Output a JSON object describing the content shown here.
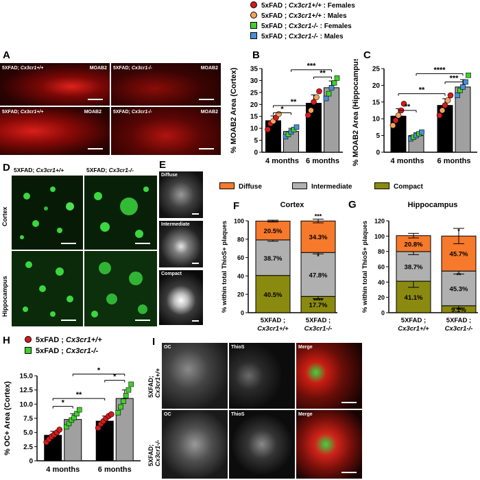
{
  "top_legend": {
    "items": [
      {
        "prefix": "5xFAD ;",
        "genotype": "Cx3cr1+/+",
        "suffix": ": Females",
        "color": "#d7191c",
        "shape": "circle"
      },
      {
        "prefix": "5xFAD ;",
        "genotype": "Cx3cr1+/+",
        "suffix": ": Males",
        "color": "#f4a35c",
        "shape": "circle"
      },
      {
        "prefix": "5xFAD ;",
        "genotype": "Cx3cr1-/-",
        "suffix": ": Females",
        "color": "#3fd12a",
        "shape": "square"
      },
      {
        "prefix": "5xFAD ;",
        "genotype": "Cx3cr1-/-",
        "suffix": ": Males",
        "color": "#4a8fd8",
        "shape": "square"
      }
    ]
  },
  "panel_letters": {
    "A": "A",
    "B": "B",
    "C": "C",
    "D": "D",
    "E": "E",
    "F": "F",
    "G": "G",
    "H": "H",
    "I": "I"
  },
  "panel_a": {
    "images": [
      {
        "genotype_prefix": "5XFAD;",
        "genotype": "Cx3cr1+/+",
        "stain": "MOAB2"
      },
      {
        "genotype_prefix": "5XFAD;",
        "genotype": "Cx3cr1-/-",
        "stain": "MOAB2"
      },
      {
        "genotype_prefix": "5XFAD;",
        "genotype": "Cx3cr1+/+",
        "stain": "MOAB2"
      },
      {
        "genotype_prefix": "5XFAD;",
        "genotype": "Cx3cr1-/-",
        "stain": "MOAB2"
      }
    ]
  },
  "panel_d": {
    "col_headers": [
      {
        "prefix": "5XFAD;",
        "genotype": "Cx3cr1+/+"
      },
      {
        "prefix": "5XFAD;",
        "genotype": "Cx3cr1-/-"
      }
    ],
    "row_labels": [
      "Cortex",
      "Hippocampus"
    ]
  },
  "panel_e": {
    "labels": [
      "Diffuse",
      "Intermediate",
      "Compact"
    ]
  },
  "panel_i": {
    "row_labels": [
      {
        "prefix": "5XFAD;",
        "genotype": "Cx3cr1+/+"
      },
      {
        "prefix": "5XFAD;",
        "genotype": "Cx3cr1-/-"
      }
    ],
    "col_labels": [
      "OC",
      "ThioS",
      "Merge"
    ]
  },
  "fg_legend": {
    "items": [
      {
        "label": "Diffuse",
        "color": "#f7792b"
      },
      {
        "label": "Intermediate",
        "color": "#b0b0b0"
      },
      {
        "label": "Compact",
        "color": "#8a8a10"
      }
    ]
  },
  "h_legend": {
    "items": [
      {
        "prefix": "5xFAD ;",
        "genotype": "Cx3cr1+/+",
        "color": "#d7191c",
        "shape": "circle"
      },
      {
        "prefix": "5xFAD ;",
        "genotype": "Cx3cr1-/-",
        "color": "#3fd12a",
        "shape": "square"
      }
    ]
  },
  "chart_data": [
    {
      "id": "B",
      "type": "bar",
      "title": "",
      "ylabel": "% MOAB2 Area (Cortex)",
      "ylim": [
        0,
        35
      ],
      "yticks": [
        0,
        5,
        10,
        15,
        20,
        25,
        30,
        35
      ],
      "categories": [
        "4 months",
        "6 months"
      ],
      "series": [
        {
          "values": [
            13.2,
            20.5
          ],
          "errors": [
            2.0,
            3.5
          ],
          "color": "#000000"
        },
        {
          "values": [
            8.7,
            27.0
          ],
          "errors": [
            1.3,
            2.8
          ],
          "color": "#a0a0a0"
        }
      ],
      "points": [
        {
          "series": 0,
          "cat": 0,
          "values": [
            9.5,
            12,
            13,
            14.5,
            16
          ],
          "colors": [
            "#d7191c",
            "#d7191c",
            "#f4a35c",
            "#d7191c",
            "#f4a35c"
          ]
        },
        {
          "series": 1,
          "cat": 0,
          "values": [
            6.5,
            7.5,
            8.5,
            9.5,
            10.5
          ],
          "colors": [
            "#4a8fd8",
            "#3fd12a",
            "#4a8fd8",
            "#3fd12a",
            "#4a8fd8"
          ]
        },
        {
          "series": 0,
          "cat": 1,
          "values": [
            15.5,
            17.5,
            21,
            23,
            25.5
          ],
          "colors": [
            "#d7191c",
            "#f4a35c",
            "#d7191c",
            "#f4a35c",
            "#d7191c"
          ]
        },
        {
          "series": 1,
          "cat": 1,
          "values": [
            22.5,
            24.5,
            27,
            29,
            31
          ],
          "colors": [
            "#4a8fd8",
            "#3fd12a",
            "#4a8fd8",
            "#3fd12a",
            "#3fd12a"
          ]
        }
      ],
      "significance": [
        {
          "from": [
            0,
            0
          ],
          "to": [
            0,
            1
          ],
          "level": 16.5,
          "label": "*"
        },
        {
          "from": [
            0,
            0
          ],
          "to": [
            1,
            0
          ],
          "level": 19.5,
          "label": "**"
        },
        {
          "from": [
            1,
            0
          ],
          "to": [
            1,
            1
          ],
          "level": 31.5,
          "label": "**"
        },
        {
          "from": [
            0,
            1
          ],
          "to": [
            1,
            1
          ],
          "level": 34.5,
          "label": "***"
        }
      ]
    },
    {
      "id": "C",
      "type": "bar",
      "title": "",
      "ylabel": "% MOAB2 Area (Hippocampus)",
      "ylim": [
        0,
        25
      ],
      "yticks": [
        0,
        5,
        10,
        15,
        20,
        25
      ],
      "categories": [
        "4 months",
        "6 months"
      ],
      "series": [
        {
          "values": [
            10.8,
            14.0
          ],
          "errors": [
            2.2,
            2.0
          ],
          "color": "#000000"
        },
        {
          "values": [
            5.0,
            19.5
          ],
          "errors": [
            0.8,
            2.2
          ],
          "color": "#a0a0a0"
        }
      ],
      "points": [
        {
          "series": 0,
          "cat": 0,
          "values": [
            8,
            9.5,
            11,
            12.5,
            14.5
          ],
          "colors": [
            "#f4a35c",
            "#d7191c",
            "#f4a35c",
            "#d7191c",
            "#d7191c"
          ]
        },
        {
          "series": 1,
          "cat": 0,
          "values": [
            4,
            4.5,
            5,
            5.5,
            6
          ],
          "colors": [
            "#4a8fd8",
            "#3fd12a",
            "#4a8fd8",
            "#3fd12a",
            "#4a8fd8"
          ]
        },
        {
          "series": 0,
          "cat": 1,
          "values": [
            11,
            12.5,
            14,
            15.5,
            17
          ],
          "colors": [
            "#d7191c",
            "#f4a35c",
            "#d7191c",
            "#f4a35c",
            "#d7191c"
          ]
        },
        {
          "series": 1,
          "cat": 1,
          "values": [
            17,
            18.5,
            19.5,
            21,
            23
          ],
          "colors": [
            "#4a8fd8",
            "#3fd12a",
            "#4a8fd8",
            "#4a8fd8",
            "#3fd12a"
          ]
        }
      ],
      "significance": [
        {
          "from": [
            0,
            0
          ],
          "to": [
            0,
            1
          ],
          "level": 12.5,
          "label": "**"
        },
        {
          "from": [
            0,
            0
          ],
          "to": [
            1,
            0
          ],
          "level": 17.5,
          "label": "**"
        },
        {
          "from": [
            1,
            0
          ],
          "to": [
            1,
            1
          ],
          "level": 21.0,
          "label": "***"
        },
        {
          "from": [
            0,
            1
          ],
          "to": [
            1,
            1
          ],
          "level": 23.5,
          "label": "****"
        }
      ]
    },
    {
      "id": "F",
      "type": "bar",
      "stacked": true,
      "title": "Cortex",
      "ylabel": "% within total ThioS+ plaques",
      "ylim": [
        0,
        100
      ],
      "yticks": [
        0,
        20,
        40,
        60,
        80,
        100
      ],
      "categories": [
        {
          "prefix": "5XFAD ;",
          "genotype": "Cx3cr1+/+"
        },
        {
          "prefix": "5XFAD ;",
          "genotype": "Cx3cr1-/-"
        }
      ],
      "series": [
        {
          "values": [
            40.5,
            17.7
          ],
          "color": "#8a8a10",
          "labels": [
            "40.5%",
            "17.7%"
          ],
          "errors": [
            0,
            2.5
          ],
          "sig": [
            "",
            "****"
          ]
        },
        {
          "values": [
            38.7,
            47.8
          ],
          "color": "#b0b0b0",
          "labels": [
            "38.7%",
            "47.8%"
          ],
          "errors": [
            1.5,
            1.5
          ],
          "sig": [
            "",
            "*"
          ]
        },
        {
          "values": [
            20.5,
            34.3
          ],
          "color": "#f7792b",
          "labels": [
            "20.5%",
            "34.3%"
          ],
          "errors": [
            1.0,
            2.0
          ],
          "sig": [
            "",
            "***"
          ]
        }
      ]
    },
    {
      "id": "G",
      "type": "bar",
      "stacked": true,
      "title": "Hippocampus",
      "ylabel": "% within total ThioS+ plaques",
      "ylim": [
        0,
        120
      ],
      "yticks": [
        0,
        20,
        40,
        60,
        80,
        100,
        120
      ],
      "categories": [
        {
          "prefix": "5XFAD ;",
          "genotype": "Cx3cr1+/+"
        },
        {
          "prefix": "5XFAD ;",
          "genotype": "Cx3cr1-/-"
        }
      ],
      "series": [
        {
          "values": [
            41.1,
            9.1
          ],
          "color": "#8a8a10",
          "labels": [
            "41.1%",
            "9.1%"
          ],
          "errors": [
            8.0,
            3.0
          ],
          "sig": [
            "",
            "**"
          ]
        },
        {
          "values": [
            38.7,
            45.3
          ],
          "color": "#b0b0b0",
          "labels": [
            "38.7%",
            "45.3%"
          ],
          "errors": [
            4.0,
            4.0
          ],
          "sig": [
            "",
            "**"
          ]
        },
        {
          "values": [
            20.8,
            45.7
          ],
          "color": "#f7792b",
          "labels": [
            "20.8%",
            "45.7%"
          ],
          "errors": [
            3.0,
            10.0
          ],
          "sig": [
            "",
            "*"
          ]
        }
      ]
    },
    {
      "id": "H",
      "type": "bar",
      "title": "",
      "ylabel": "% OC+ Area (Cortex)",
      "ylim": [
        0,
        15
      ],
      "yticks": [
        0,
        2.5,
        5.0,
        7.5,
        10.0,
        12.5,
        15.0
      ],
      "ytick_labels": [
        "0",
        "2.5",
        "5.0",
        "7.5",
        "10.0",
        "12.5",
        "15.0"
      ],
      "categories": [
        "4 months",
        "6 months"
      ],
      "series": [
        {
          "values": [
            4.5,
            7.0
          ],
          "errors": [
            0.7,
            0.9
          ],
          "color": "#000000"
        },
        {
          "values": [
            7.3,
            11.0
          ],
          "errors": [
            1.0,
            1.5
          ],
          "color": "#a0a0a0"
        }
      ],
      "points": [
        {
          "series": 0,
          "cat": 0,
          "values": [
            3.3,
            3.8,
            4.3,
            4.6,
            5.0,
            5.5
          ],
          "colors": [
            "#d7191c",
            "#d7191c",
            "#d7191c",
            "#d7191c",
            "#d7191c",
            "#d7191c"
          ]
        },
        {
          "series": 1,
          "cat": 0,
          "values": [
            6.0,
            6.6,
            7.2,
            7.6,
            8.3,
            9.0
          ],
          "colors": [
            "#3fd12a",
            "#3fd12a",
            "#3fd12a",
            "#3fd12a",
            "#3fd12a",
            "#3fd12a"
          ]
        },
        {
          "series": 0,
          "cat": 1,
          "values": [
            5.8,
            6.5,
            7.0,
            7.5,
            7.9,
            8.2
          ],
          "colors": [
            "#d7191c",
            "#d7191c",
            "#d7191c",
            "#d7191c",
            "#d7191c",
            "#d7191c"
          ]
        },
        {
          "series": 1,
          "cat": 1,
          "values": [
            8.5,
            9.5,
            10.5,
            11.5,
            12.5,
            13.5
          ],
          "colors": [
            "#3fd12a",
            "#3fd12a",
            "#3fd12a",
            "#3fd12a",
            "#3fd12a",
            "#3fd12a"
          ]
        }
      ],
      "significance": [
        {
          "from": [
            0,
            0
          ],
          "to": [
            0,
            1
          ],
          "level": 9.6,
          "label": "*"
        },
        {
          "from": [
            0,
            0
          ],
          "to": [
            1,
            0
          ],
          "level": 11.0,
          "label": "**"
        },
        {
          "from": [
            1,
            0
          ],
          "to": [
            1,
            1
          ],
          "level": 14.2,
          "label": "*"
        },
        {
          "from": [
            0,
            1
          ],
          "to": [
            1,
            1
          ],
          "level": 15.3,
          "label": "*"
        }
      ]
    }
  ]
}
